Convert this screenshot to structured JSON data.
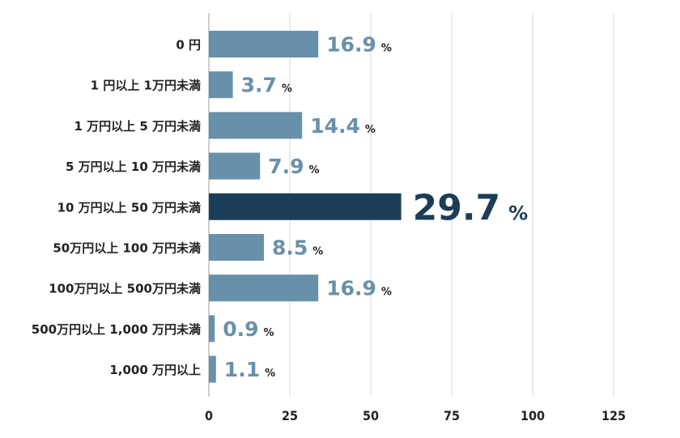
{
  "chart_data": {
    "type": "bar",
    "orientation": "horizontal",
    "categories": [
      "0 円",
      "1 円以上 1万円未満",
      "1 万円以上 5 万円未満",
      "5 万円以上 10 万円未満",
      "10 万円以上 50 万円未満",
      "50万円以上 100 万円未満",
      "100万円以上 500万円未満",
      "500万円以上 1,000 万円未満",
      "1,000 万円以上"
    ],
    "values": [
      16.9,
      3.7,
      14.4,
      7.9,
      29.7,
      8.5,
      16.9,
      0.9,
      1.1
    ],
    "value_labels": [
      "16.9",
      "3.7",
      "14.4",
      "7.9",
      "29.7",
      "8.5",
      "16.9",
      "0.9",
      "1.1"
    ],
    "unit": "%",
    "highlight_index": 4,
    "x_ticks": [
      "0",
      "25",
      "50",
      "75",
      "100",
      "125"
    ],
    "x_tick_values": [
      0,
      25,
      50,
      75,
      100,
      125
    ],
    "title": "",
    "xlabel": "",
    "ylabel": "",
    "grid": true,
    "colors": {
      "bar": "#6990AA",
      "highlight": "#1C3D57",
      "label": "#6990AA",
      "highlight_label": "#1C3D57",
      "axis_text": "#222222",
      "grid": "#D5D5D5"
    }
  }
}
